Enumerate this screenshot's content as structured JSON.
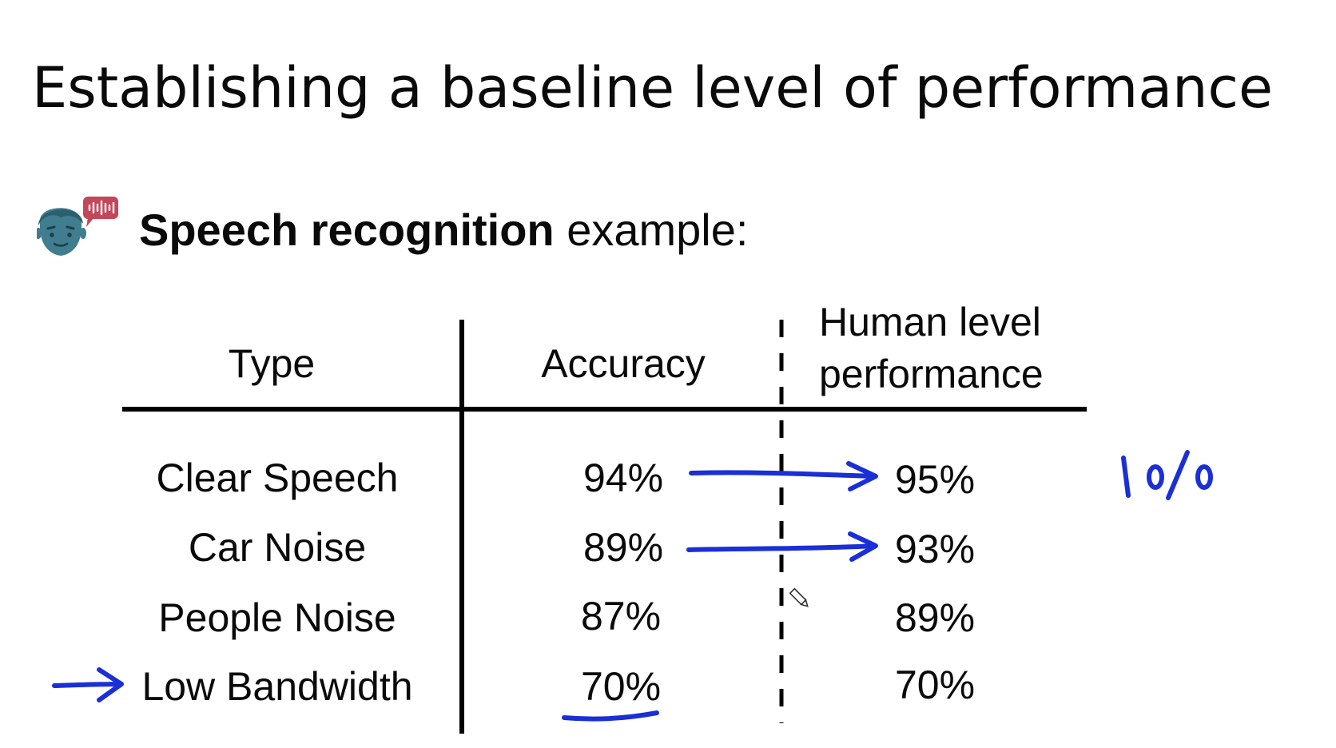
{
  "slide": {
    "title": "Establishing a baseline level of performance",
    "subtitle_bold": "Speech recognition",
    "subtitle_rest": " example:"
  },
  "table": {
    "headers": {
      "type": "Type",
      "accuracy": "Accuracy",
      "human_line1": "Human level",
      "human_line2": "performance"
    },
    "rows": [
      {
        "type": "Clear Speech",
        "accuracy": "94%",
        "human": "95%"
      },
      {
        "type": "Car Noise",
        "accuracy": "89%",
        "human": "93%"
      },
      {
        "type": "People Noise",
        "accuracy": "87%",
        "human": "89%"
      },
      {
        "type": "Low Bandwidth",
        "accuracy": "70%",
        "human": "70%"
      }
    ]
  },
  "annotations": {
    "handwritten_note": "1%",
    "ink_color": "#1a2fd6"
  },
  "icons": {
    "avatar": "person-speaking-icon",
    "cursor": "pencil-cursor-icon"
  },
  "colors": {
    "avatar_face": "#3f7d8f",
    "speech_bubble": "#c2475a"
  }
}
